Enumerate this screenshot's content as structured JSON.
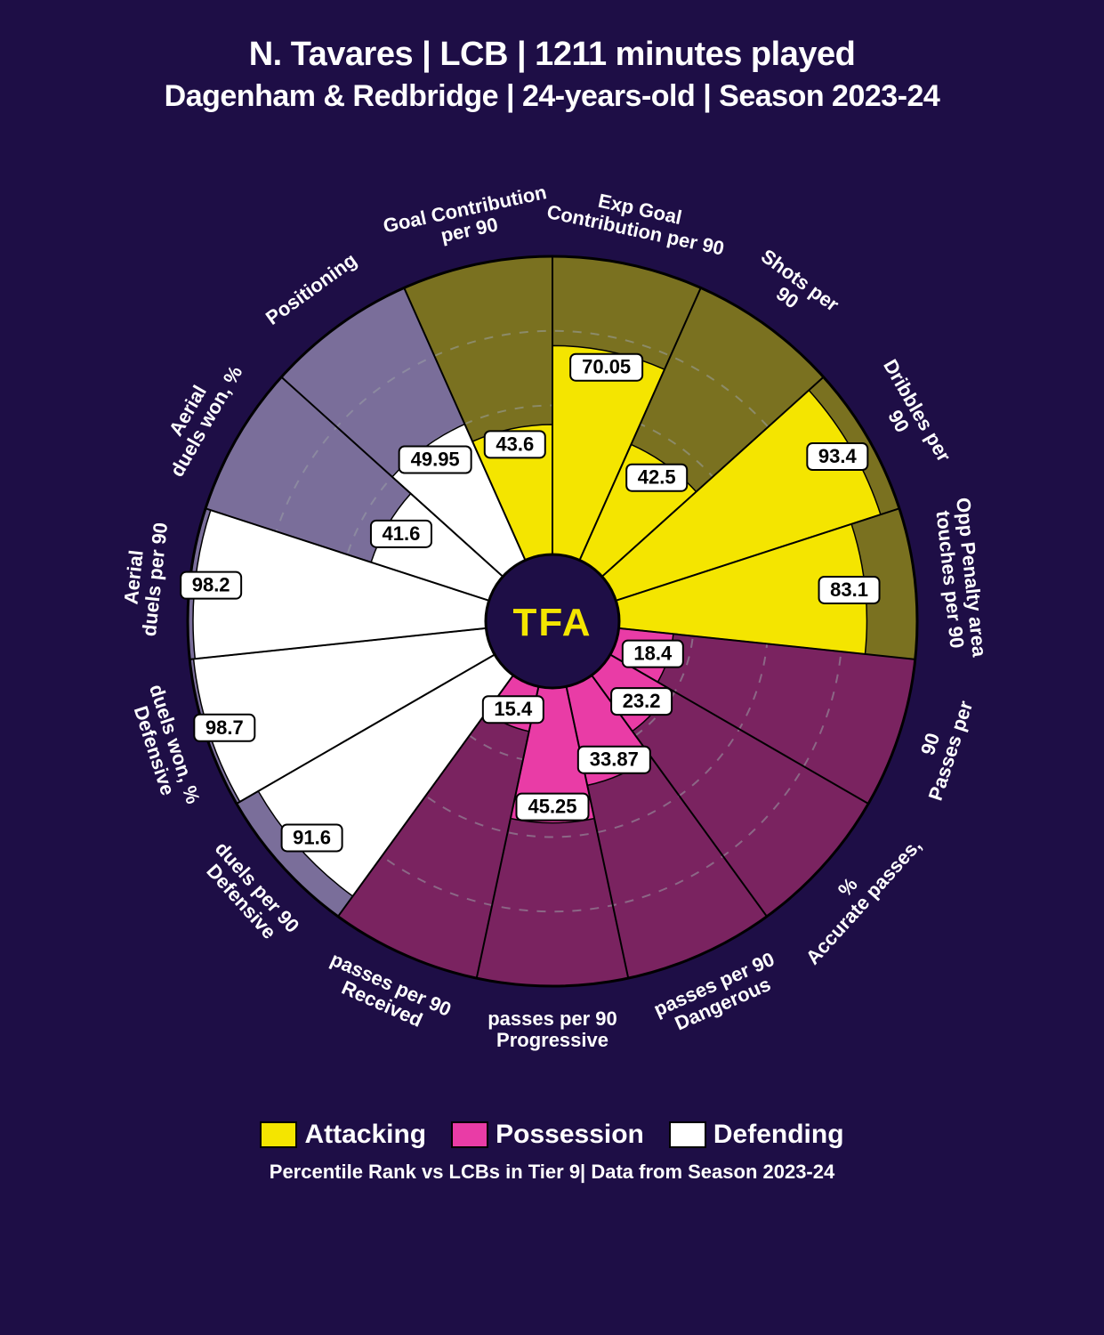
{
  "title_line_1": "N. Tavares | LCB | 1211 minutes played",
  "title_line_2": "Dagenham & Redbridge | 24-years-old | Season 2023-24",
  "footer_text": "Percentile Rank vs LCBs in Tier 9| Data from Season 2023-24",
  "center_logo": "TFA",
  "legend": {
    "attacking": {
      "label": "Attacking",
      "color": "#f4e500"
    },
    "possession": {
      "label": "Possession",
      "color": "#e93ca6"
    },
    "defending": {
      "label": "Defending",
      "color": "#ffffff"
    }
  },
  "styling": {
    "background_color": "#1e0e46",
    "title_color": "#ffffff",
    "center_circle_fill": "#1e0e46",
    "center_text_color": "#f4e500",
    "value_box_fill": "#ffffff",
    "value_box_stroke": "#000000",
    "value_text_color": "#000000",
    "grid_color": "#9aa0a6",
    "outer_radius": 410,
    "inner_radius": 75,
    "label_radius": 460,
    "grid_levels": [
      25,
      50,
      75,
      100
    ],
    "shade_attacking": "#7a7120",
    "shade_possession": "#7a2360",
    "shade_defending": "#7a6e9a",
    "label_fontsize": 22,
    "value_fontsize": 22,
    "title_fontsize_1": 38,
    "title_fontsize_2": 34
  },
  "metrics": [
    {
      "label": "Goal Contribution per 90",
      "value": 43.6,
      "category": "attacking"
    },
    {
      "label": "Exp Goal Contribution per 90",
      "value": 70.05,
      "category": "attacking"
    },
    {
      "label": "Shots per 90",
      "value": 42.5,
      "category": "attacking"
    },
    {
      "label": "Dribbles per 90",
      "value": 93.4,
      "category": "attacking"
    },
    {
      "label": "Opp Penalty area touches per 90",
      "value": 83.1,
      "category": "attacking"
    },
    {
      "label": "Passes per 90",
      "value": 18.4,
      "category": "possession"
    },
    {
      "label": "Accurate passes, %",
      "value": 23.2,
      "category": "possession"
    },
    {
      "label": "Dangerous passes per 90",
      "value": 33.87,
      "category": "possession"
    },
    {
      "label": "Progressive passes per 90",
      "value": 45.25,
      "category": "possession"
    },
    {
      "label": "Received passes per 90",
      "value": 15.4,
      "category": "possession"
    },
    {
      "label": "Defensive duels per 90",
      "value": 91.6,
      "category": "defending"
    },
    {
      "label": "Defensive duels won, %",
      "value": 98.7,
      "category": "defending"
    },
    {
      "label": "Aerial duels per 90",
      "value": 98.2,
      "category": "defending"
    },
    {
      "label": "Aerial duels won, %",
      "value": 41.6,
      "category": "defending"
    },
    {
      "label": "Positioning",
      "value": 49.95,
      "category": "defending"
    }
  ]
}
